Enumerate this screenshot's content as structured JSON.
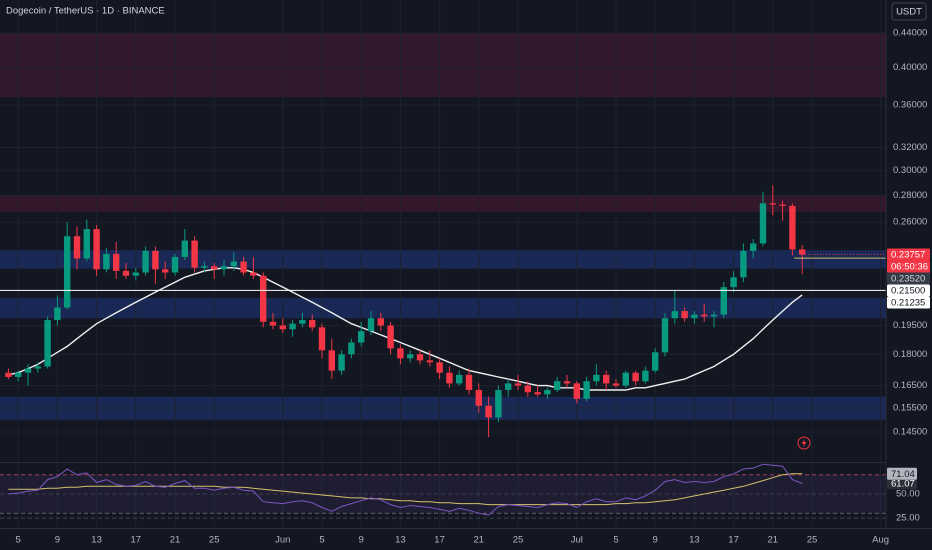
{
  "chart_data": [
    {
      "type": "candlestick",
      "title": "Dogecoin / TetherUS · 1D · BINANCE",
      "currency": "USDT",
      "log_scale": true,
      "grid": true,
      "up_color": "#089981",
      "down_color": "#f23645",
      "x": [
        "05-04",
        "05-05",
        "05-06",
        "05-07",
        "05-08",
        "05-09",
        "05-10",
        "05-11",
        "05-12",
        "05-13",
        "05-14",
        "05-15",
        "05-16",
        "05-17",
        "05-18",
        "05-19",
        "05-20",
        "05-21",
        "05-22",
        "05-23",
        "05-24",
        "05-25",
        "05-26",
        "05-27",
        "05-28",
        "05-29",
        "05-30",
        "05-31",
        "06-01",
        "06-02",
        "06-03",
        "06-04",
        "06-05",
        "06-06",
        "06-07",
        "06-08",
        "06-09",
        "06-10",
        "06-11",
        "06-12",
        "06-13",
        "06-14",
        "06-15",
        "06-16",
        "06-17",
        "06-18",
        "06-19",
        "06-20",
        "06-21",
        "06-22",
        "06-23",
        "06-24",
        "06-25",
        "06-26",
        "06-27",
        "06-28",
        "06-29",
        "06-30",
        "07-01",
        "07-02",
        "07-03",
        "07-04",
        "07-05",
        "07-06",
        "07-07",
        "07-08",
        "07-09",
        "07-10",
        "07-11",
        "07-12",
        "07-13",
        "07-14",
        "07-15",
        "07-16",
        "07-17",
        "07-18",
        "07-19",
        "07-20",
        "07-21",
        "07-22",
        "07-23",
        "07-24"
      ],
      "open": [
        0.171,
        0.169,
        0.171,
        0.173,
        0.174,
        0.198,
        0.205,
        0.25,
        0.235,
        0.255,
        0.228,
        0.238,
        0.227,
        0.224,
        0.226,
        0.24,
        0.228,
        0.226,
        0.236,
        0.247,
        0.229,
        0.23,
        0.228,
        0.23,
        0.233,
        0.226,
        0.224,
        0.197,
        0.195,
        0.193,
        0.196,
        0.198,
        0.194,
        0.182,
        0.172,
        0.18,
        0.186,
        0.192,
        0.199,
        0.195,
        0.183,
        0.178,
        0.18,
        0.177,
        0.176,
        0.171,
        0.166,
        0.17,
        0.163,
        0.156,
        0.151,
        0.163,
        0.166,
        0.165,
        0.162,
        0.161,
        0.163,
        0.167,
        0.166,
        0.159,
        0.167,
        0.17,
        0.166,
        0.165,
        0.171,
        0.167,
        0.172,
        0.181,
        0.199,
        0.203,
        0.199,
        0.201,
        0.2,
        0.201,
        0.217,
        0.223,
        0.24,
        0.245,
        0.274,
        0.273,
        0.272,
        0.241
      ],
      "high": [
        0.173,
        0.172,
        0.175,
        0.176,
        0.2,
        0.212,
        0.26,
        0.257,
        0.262,
        0.258,
        0.242,
        0.246,
        0.232,
        0.229,
        0.243,
        0.243,
        0.233,
        0.238,
        0.255,
        0.25,
        0.233,
        0.232,
        0.234,
        0.239,
        0.236,
        0.236,
        0.226,
        0.202,
        0.199,
        0.198,
        0.202,
        0.201,
        0.196,
        0.188,
        0.182,
        0.188,
        0.197,
        0.203,
        0.202,
        0.197,
        0.185,
        0.182,
        0.182,
        0.182,
        0.178,
        0.174,
        0.172,
        0.173,
        0.166,
        0.16,
        0.165,
        0.168,
        0.17,
        0.167,
        0.165,
        0.164,
        0.169,
        0.17,
        0.167,
        0.169,
        0.175,
        0.172,
        0.168,
        0.172,
        0.172,
        0.174,
        0.183,
        0.202,
        0.215,
        0.205,
        0.203,
        0.207,
        0.203,
        0.22,
        0.227,
        0.245,
        0.248,
        0.283,
        0.288,
        0.276,
        0.274,
        0.244
      ],
      "low": [
        0.168,
        0.167,
        0.165,
        0.171,
        0.173,
        0.195,
        0.204,
        0.228,
        0.233,
        0.224,
        0.226,
        0.222,
        0.222,
        0.221,
        0.224,
        0.219,
        0.222,
        0.224,
        0.234,
        0.226,
        0.226,
        0.222,
        0.224,
        0.227,
        0.224,
        0.222,
        0.194,
        0.193,
        0.191,
        0.189,
        0.194,
        0.192,
        0.178,
        0.168,
        0.17,
        0.178,
        0.184,
        0.19,
        0.192,
        0.18,
        0.175,
        0.176,
        0.175,
        0.174,
        0.168,
        0.164,
        0.165,
        0.161,
        0.153,
        0.143,
        0.149,
        0.16,
        0.163,
        0.16,
        0.16,
        0.159,
        0.162,
        0.164,
        0.157,
        0.158,
        0.165,
        0.163,
        0.164,
        0.164,
        0.165,
        0.166,
        0.171,
        0.179,
        0.196,
        0.197,
        0.196,
        0.197,
        0.194,
        0.199,
        0.214,
        0.22,
        0.235,
        0.243,
        0.265,
        0.261,
        0.237,
        0.225
      ],
      "close": [
        0.169,
        0.171,
        0.173,
        0.174,
        0.198,
        0.205,
        0.25,
        0.235,
        0.255,
        0.228,
        0.238,
        0.227,
        0.224,
        0.226,
        0.24,
        0.228,
        0.226,
        0.236,
        0.247,
        0.229,
        0.23,
        0.228,
        0.23,
        0.233,
        0.226,
        0.224,
        0.197,
        0.195,
        0.193,
        0.196,
        0.198,
        0.194,
        0.182,
        0.172,
        0.18,
        0.186,
        0.192,
        0.199,
        0.195,
        0.183,
        0.178,
        0.18,
        0.177,
        0.176,
        0.171,
        0.166,
        0.17,
        0.163,
        0.156,
        0.151,
        0.163,
        0.166,
        0.165,
        0.162,
        0.161,
        0.163,
        0.167,
        0.166,
        0.159,
        0.167,
        0.17,
        0.166,
        0.165,
        0.171,
        0.167,
        0.172,
        0.181,
        0.199,
        0.203,
        0.199,
        0.201,
        0.2,
        0.201,
        0.217,
        0.223,
        0.24,
        0.245,
        0.274,
        0.273,
        0.272,
        0.241,
        0.23757
      ],
      "ma": {
        "color": "#f0f0f0",
        "values": [
          0.17,
          0.171,
          0.173,
          0.175,
          0.178,
          0.181,
          0.184,
          0.188,
          0.192,
          0.196,
          0.199,
          0.202,
          0.205,
          0.208,
          0.211,
          0.214,
          0.217,
          0.22,
          0.223,
          0.225,
          0.227,
          0.228,
          0.229,
          0.229,
          0.228,
          0.226,
          0.223,
          0.22,
          0.217,
          0.214,
          0.211,
          0.208,
          0.205,
          0.202,
          0.199,
          0.196,
          0.194,
          0.192,
          0.19,
          0.188,
          0.186,
          0.184,
          0.182,
          0.18,
          0.178,
          0.176,
          0.174,
          0.172,
          0.171,
          0.17,
          0.169,
          0.168,
          0.167,
          0.166,
          0.165,
          0.165,
          0.164,
          0.164,
          0.164,
          0.163,
          0.163,
          0.163,
          0.163,
          0.163,
          0.164,
          0.164,
          0.165,
          0.166,
          0.167,
          0.168,
          0.17,
          0.172,
          0.174,
          0.177,
          0.18,
          0.184,
          0.188,
          0.193,
          0.198,
          0.203,
          0.208,
          0.21235
        ]
      },
      "countdown": "06:50:36",
      "price_labels": [
        {
          "value": 0.2352,
          "label": "0.23520"
        },
        {
          "value": 0.215,
          "label": "0.21500"
        }
      ],
      "zones": [
        {
          "from": 0.368,
          "to": 0.44,
          "color": "#3a1a2f"
        },
        {
          "from": 0.2675,
          "to": 0.28,
          "color": "#38192c"
        },
        {
          "from": 0.2285,
          "to": 0.2405,
          "color": "#1b2b5e"
        },
        {
          "from": 0.199,
          "to": 0.2106,
          "color": "#1b2b5e"
        },
        {
          "from": 0.15,
          "to": 0.16,
          "color": "#1b2b5e"
        }
      ],
      "ylim": [
        0.1334,
        0.4823
      ],
      "yticks": [
        {
          "value": 0.44,
          "label": "0.44000"
        },
        {
          "value": 0.4,
          "label": "0.40000"
        },
        {
          "value": 0.36,
          "label": "0.36000"
        },
        {
          "value": 0.32,
          "label": "0.32000"
        },
        {
          "value": 0.3,
          "label": "0.30000"
        },
        {
          "value": 0.28,
          "label": "0.28000"
        },
        {
          "value": 0.26,
          "label": "0.26000"
        },
        {
          "value": 0.195,
          "label": "0.19500"
        },
        {
          "value": 0.18,
          "label": "0.18000"
        },
        {
          "value": 0.165,
          "label": "0.16500"
        },
        {
          "value": 0.155,
          "label": "0.15500"
        },
        {
          "value": 0.145,
          "label": "0.14500"
        }
      ],
      "xticks": [
        {
          "value": "05-05",
          "label": "5"
        },
        {
          "value": "05-09",
          "label": "9"
        },
        {
          "value": "05-13",
          "label": "13"
        },
        {
          "value": "05-17",
          "label": "17"
        },
        {
          "value": "05-21",
          "label": "21"
        },
        {
          "value": "05-25",
          "label": "25"
        },
        {
          "value": "06-01",
          "label": "Jun"
        },
        {
          "value": "06-05",
          "label": "5"
        },
        {
          "value": "06-09",
          "label": "9"
        },
        {
          "value": "06-13",
          "label": "13"
        },
        {
          "value": "06-17",
          "label": "17"
        },
        {
          "value": "06-21",
          "label": "21"
        },
        {
          "value": "06-25",
          "label": "25"
        },
        {
          "value": "07-01",
          "label": "Jul"
        },
        {
          "value": "07-05",
          "label": "5"
        },
        {
          "value": "07-09",
          "label": "9"
        },
        {
          "value": "07-13",
          "label": "13"
        },
        {
          "value": "07-17",
          "label": "17"
        },
        {
          "value": "07-21",
          "label": "21"
        },
        {
          "value": "07-25",
          "label": "25"
        },
        {
          "value": "08-01",
          "label": "Aug"
        }
      ]
    },
    {
      "type": "line",
      "series": [
        {
          "color": "#7e57c2",
          "values": [
            50,
            51,
            53,
            54,
            65,
            68,
            76,
            70,
            72,
            62,
            65,
            60,
            58,
            59,
            63,
            58,
            57,
            61,
            64,
            56,
            56,
            54,
            56,
            57,
            54,
            53,
            42,
            41,
            40,
            42,
            43,
            41,
            36,
            32,
            37,
            40,
            43,
            46,
            44,
            39,
            36,
            38,
            37,
            36,
            34,
            32,
            35,
            33,
            30,
            28,
            37,
            39,
            38,
            37,
            36,
            39,
            41,
            40,
            36,
            42,
            45,
            42,
            42,
            46,
            44,
            48,
            54,
            63,
            65,
            62,
            63,
            62,
            63,
            68,
            71,
            76,
            77,
            81,
            80,
            79,
            65,
            61.07
          ]
        },
        {
          "color": "#d6c16e",
          "values": [
            55,
            55,
            55,
            55,
            56,
            56,
            57,
            57,
            58,
            58,
            58,
            58,
            58,
            58,
            58,
            58,
            58,
            58,
            58,
            58,
            58,
            58,
            57,
            57,
            57,
            56,
            55,
            54,
            53,
            52,
            51,
            50,
            49,
            48,
            47,
            46,
            46,
            45,
            45,
            44,
            43,
            43,
            42,
            42,
            41,
            41,
            40,
            40,
            40,
            39,
            39,
            39,
            39,
            39,
            39,
            39,
            39,
            39,
            39,
            39,
            39,
            39,
            40,
            40,
            41,
            41,
            42,
            43,
            44,
            46,
            48,
            50,
            52,
            54,
            56,
            58,
            61,
            64,
            67,
            70,
            71,
            71.04
          ]
        }
      ],
      "rsi_band": [
        30,
        70
      ],
      "ylim": [
        14.6,
        82.3
      ],
      "yticks": [
        {
          "value": 50,
          "label": "50.00"
        },
        {
          "value": 25,
          "label": "25.00"
        }
      ]
    }
  ]
}
